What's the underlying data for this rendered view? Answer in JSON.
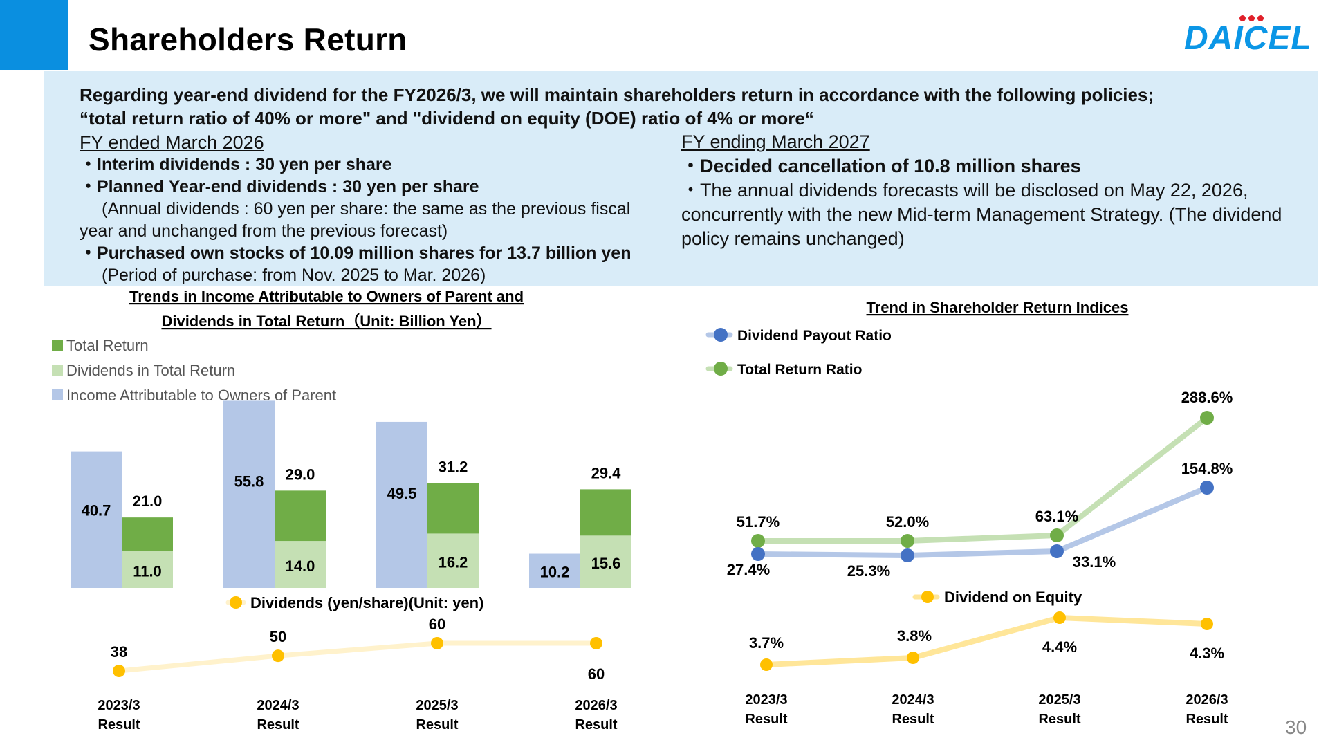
{
  "page": {
    "title": "Shareholders Return",
    "logo_text": "DAICEL",
    "page_number": "30",
    "brand_color": "#0a8fe0",
    "logo_color": "#0b96e6",
    "logo_dot_color": "#e0202a",
    "box_color": "#d9ecf8"
  },
  "info": {
    "headline_1": "Regarding year-end dividend for the FY2026/3, we will maintain shareholders return in accordance with the following policies;",
    "headline_2": "“total return ratio of 40% or more\" and \"dividend on equity (DOE) ratio of 4% or more“",
    "left_heading": "FY ended March 2026",
    "left_item_1": "・Interim dividends : 30 yen per share",
    "left_item_2": "・Planned Year-end dividends : 30 yen per share",
    "left_note_1": "(Annual dividends : 60 yen per share: the same as the previous fiscal",
    "left_note_2": "year and unchanged from the previous forecast)",
    "left_item_3": "・Purchased own stocks of 10.09 million shares for 13.7 billion yen",
    "left_note_3": "(Period of purchase: from Nov. 2025 to Mar. 2026)",
    "right_heading": "FY ending March 2027",
    "right_item_1": "・Decided cancellation of 10.8 million shares",
    "right_item_2": "・The annual dividends forecasts will be disclosed on May 22, 2026, concurrently with the new Mid-term Management Strategy. (The dividend policy remains unchanged)"
  },
  "chart_data": [
    {
      "type": "bar",
      "title": "Trends in Income Attributable to Owners of Parent and Dividends in Total Return（Unit: Billion Yen）",
      "categories": [
        "2023/3 Result",
        "2024/3 Result",
        "2025/3 Result",
        "2026/3 Result"
      ],
      "series": [
        {
          "name": "Income Attributable to Owners of Parent",
          "values": [
            40.7,
            55.8,
            49.5,
            10.2
          ],
          "color": "#b4c7e7"
        },
        {
          "name": "Dividends in Total Return",
          "values": [
            11.0,
            14.0,
            16.2,
            15.6
          ],
          "color": "#c5e0b4"
        },
        {
          "name": "Total Return",
          "values": [
            21.0,
            29.0,
            31.2,
            29.4
          ],
          "color": "#70ad47"
        }
      ],
      "legend": [
        "Total Return",
        "Dividends in Total Return",
        "Income Attributable to Owners of Parent"
      ],
      "legend_position": "top-left",
      "stacked_total_return": true,
      "grid": false
    },
    {
      "type": "line",
      "title": "",
      "categories": [
        "2023/3 Result",
        "2024/3 Result",
        "2025/3 Result",
        "2026/3 Result"
      ],
      "series": [
        {
          "name": "Dividends (yen/share)(Unit: yen)",
          "values": [
            38,
            50,
            60,
            60
          ],
          "color": "#ffc000"
        }
      ],
      "grid": false
    },
    {
      "type": "line",
      "title": "Trend in Shareholder Return Indices",
      "categories": [
        "2023/3 Result",
        "2024/3 Result",
        "2025/3 Result",
        "2026/3 Result"
      ],
      "series": [
        {
          "name": "Dividend Payout Ratio",
          "values": [
            27.4,
            25.3,
            33.1,
            154.8
          ],
          "labels": [
            "27.4%",
            "25.3%",
            "33.1%",
            "154.8%"
          ],
          "color": "#4472c4"
        },
        {
          "name": "Total Return Ratio",
          "values": [
            51.7,
            52.0,
            63.1,
            288.6
          ],
          "labels": [
            "51.7%",
            "52.0%",
            "63.1%",
            "288.6%"
          ],
          "color": "#70ad47"
        }
      ],
      "legend_position": "top-left",
      "grid": false
    },
    {
      "type": "line",
      "title": "",
      "categories": [
        "2023/3 Result",
        "2024/3 Result",
        "2025/3 Result",
        "2026/3 Result"
      ],
      "series": [
        {
          "name": "Dividend on Equity",
          "values": [
            3.7,
            3.8,
            4.4,
            4.3
          ],
          "labels": [
            "3.7%",
            "3.8%",
            "4.4%",
            "4.3%"
          ],
          "color": "#ffc000"
        }
      ],
      "grid": false
    }
  ],
  "x_labels": [
    {
      "year": "2023/3",
      "sub": "Result"
    },
    {
      "year": "2024/3",
      "sub": "Result"
    },
    {
      "year": "2025/3",
      "sub": "Result"
    },
    {
      "year": "2026/3",
      "sub": "Result"
    }
  ],
  "left_chart_title_1": "Trends in Income Attributable to Owners of Parent and",
  "left_chart_title_2": "Dividends in Total Return（Unit: Billion Yen）",
  "right_chart_title": "Trend in Shareholder Return Indices"
}
